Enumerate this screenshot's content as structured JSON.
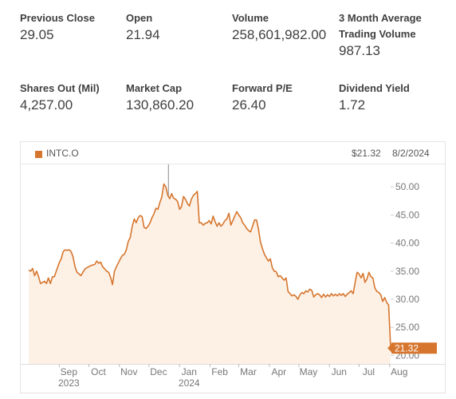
{
  "stats": [
    {
      "label": "Previous Close",
      "value": "29.05"
    },
    {
      "label": "Open",
      "value": "21.94"
    },
    {
      "label": "Volume",
      "value": "258,601,982.00"
    },
    {
      "label": "3 Month Average Trading Volume",
      "value": "987.13"
    },
    {
      "label": "Shares Out (Mil)",
      "value": "4,257.00"
    },
    {
      "label": "Market Cap",
      "value": "130,860.20"
    },
    {
      "label": "Forward P/E",
      "value": "26.40"
    },
    {
      "label": "Dividend Yield",
      "value": "1.72"
    }
  ],
  "colors": {
    "accent": "#d6762e",
    "fill": "#fdf1e6"
  },
  "chart_data": {
    "type": "area",
    "series": [
      {
        "name": "INTC.O"
      }
    ],
    "last_price": "$21.32",
    "last_date": "8/2/2024",
    "last_value_label": "21.32",
    "ylim": [
      18.5,
      54
    ],
    "yticks": [
      "20.00",
      "25.00",
      "30.00",
      "35.00",
      "40.00",
      "45.00",
      "50.00"
    ],
    "ytick_values": [
      20,
      25,
      30,
      35,
      40,
      45,
      50
    ],
    "xticks": [
      {
        "label": "Sep",
        "sub": "2023",
        "date": "2023-09-01"
      },
      {
        "label": "Oct",
        "sub": "",
        "date": "2023-10-01"
      },
      {
        "label": "Nov",
        "sub": "",
        "date": "2023-11-01"
      },
      {
        "label": "Dec",
        "sub": "",
        "date": "2023-12-01"
      },
      {
        "label": "Jan",
        "sub": "2024",
        "date": "2024-01-01"
      },
      {
        "label": "Feb",
        "sub": "",
        "date": "2024-02-01"
      },
      {
        "label": "Mar",
        "sub": "",
        "date": "2024-03-01"
      },
      {
        "label": "Apr",
        "sub": "",
        "date": "2024-04-01"
      },
      {
        "label": "May",
        "sub": "",
        "date": "2024-05-01"
      },
      {
        "label": "Jun",
        "sub": "",
        "date": "2024-06-01"
      },
      {
        "label": "Jul",
        "sub": "",
        "date": "2024-07-01"
      },
      {
        "label": "Aug",
        "sub": "",
        "date": "2024-08-01"
      }
    ],
    "x_range": [
      "2023-08-01",
      "2024-08-02"
    ],
    "points": [
      [
        "2023-08-01",
        35.2
      ],
      [
        "2023-08-03",
        35.0
      ],
      [
        "2023-08-05",
        35.5
      ],
      [
        "2023-08-07",
        34.2
      ],
      [
        "2023-08-09",
        35.0
      ],
      [
        "2023-08-11",
        34.0
      ],
      [
        "2023-08-13",
        32.8
      ],
      [
        "2023-08-15",
        33.0
      ],
      [
        "2023-08-17",
        33.2
      ],
      [
        "2023-08-19",
        32.8
      ],
      [
        "2023-08-21",
        33.8
      ],
      [
        "2023-08-23",
        32.8
      ],
      [
        "2023-08-25",
        34.0
      ],
      [
        "2023-08-27",
        34.0
      ],
      [
        "2023-08-29",
        35.0
      ],
      [
        "2023-08-31",
        36.0
      ],
      [
        "2023-09-01",
        36.5
      ],
      [
        "2023-09-03",
        37.2
      ],
      [
        "2023-09-05",
        38.5
      ],
      [
        "2023-09-07",
        38.8
      ],
      [
        "2023-09-09",
        38.7
      ],
      [
        "2023-09-11",
        38.8
      ],
      [
        "2023-09-13",
        38.5
      ],
      [
        "2023-09-15",
        37.5
      ],
      [
        "2023-09-17",
        35.8
      ],
      [
        "2023-09-19",
        34.8
      ],
      [
        "2023-09-21",
        34.5
      ],
      [
        "2023-09-23",
        34.2
      ],
      [
        "2023-09-25",
        34.8
      ],
      [
        "2023-09-27",
        35.4
      ],
      [
        "2023-09-29",
        35.6
      ],
      [
        "2023-10-01",
        35.8
      ],
      [
        "2023-10-03",
        36.0
      ],
      [
        "2023-10-05",
        36.1
      ],
      [
        "2023-10-07",
        36.2
      ],
      [
        "2023-10-09",
        36.8
      ],
      [
        "2023-10-11",
        36.4
      ],
      [
        "2023-10-13",
        36.6
      ],
      [
        "2023-10-15",
        35.8
      ],
      [
        "2023-10-17",
        35.4
      ],
      [
        "2023-10-19",
        35.0
      ],
      [
        "2023-10-21",
        34.8
      ],
      [
        "2023-10-23",
        33.9
      ],
      [
        "2023-10-25",
        32.6
      ],
      [
        "2023-10-27",
        35.0
      ],
      [
        "2023-10-29",
        35.8
      ],
      [
        "2023-10-31",
        36.5
      ],
      [
        "2023-11-02",
        37.2
      ],
      [
        "2023-11-04",
        37.8
      ],
      [
        "2023-11-06",
        38.0
      ],
      [
        "2023-11-08",
        38.8
      ],
      [
        "2023-11-10",
        40.3
      ],
      [
        "2023-11-12",
        41.0
      ],
      [
        "2023-11-14",
        43.0
      ],
      [
        "2023-11-16",
        44.3
      ],
      [
        "2023-11-18",
        43.6
      ],
      [
        "2023-11-20",
        44.5
      ],
      [
        "2023-11-22",
        44.9
      ],
      [
        "2023-11-24",
        44.7
      ],
      [
        "2023-11-26",
        42.8
      ],
      [
        "2023-11-28",
        42.6
      ],
      [
        "2023-11-30",
        43.0
      ],
      [
        "2023-12-02",
        43.6
      ],
      [
        "2023-12-04",
        44.5
      ],
      [
        "2023-12-06",
        45.2
      ],
      [
        "2023-12-08",
        46.2
      ],
      [
        "2023-12-10",
        46.0
      ],
      [
        "2023-12-12",
        47.2
      ],
      [
        "2023-12-14",
        48.2
      ],
      [
        "2023-12-16",
        50.5
      ],
      [
        "2023-12-18",
        50.0
      ],
      [
        "2023-12-20",
        48.5
      ],
      [
        "2023-12-22",
        47.9
      ],
      [
        "2023-12-24",
        48.8
      ],
      [
        "2023-12-26",
        48.0
      ],
      [
        "2023-12-28",
        47.8
      ],
      [
        "2023-12-30",
        47.4
      ],
      [
        "2024-01-01",
        46.0
      ],
      [
        "2024-01-03",
        46.5
      ],
      [
        "2024-01-05",
        48.3
      ],
      [
        "2024-01-07",
        47.8
      ],
      [
        "2024-01-09",
        47.0
      ],
      [
        "2024-01-11",
        46.6
      ],
      [
        "2024-01-13",
        47.8
      ],
      [
        "2024-01-15",
        48.5
      ],
      [
        "2024-01-17",
        48.8
      ],
      [
        "2024-01-19",
        49.2
      ],
      [
        "2024-01-21",
        43.6
      ],
      [
        "2024-01-23",
        43.6
      ],
      [
        "2024-01-25",
        43.2
      ],
      [
        "2024-01-27",
        43.5
      ],
      [
        "2024-01-29",
        43.6
      ],
      [
        "2024-01-31",
        44.0
      ],
      [
        "2024-02-02",
        43.4
      ],
      [
        "2024-02-04",
        44.8
      ],
      [
        "2024-02-06",
        43.8
      ],
      [
        "2024-02-08",
        43.0
      ],
      [
        "2024-02-10",
        43.6
      ],
      [
        "2024-02-12",
        43.0
      ],
      [
        "2024-02-14",
        43.4
      ],
      [
        "2024-02-16",
        44.0
      ],
      [
        "2024-02-18",
        44.3
      ],
      [
        "2024-02-20",
        45.3
      ],
      [
        "2024-02-22",
        43.2
      ],
      [
        "2024-02-24",
        44.0
      ],
      [
        "2024-02-26",
        44.8
      ],
      [
        "2024-02-28",
        45.6
      ],
      [
        "2024-03-01",
        45.0
      ],
      [
        "2024-03-03",
        44.5
      ],
      [
        "2024-03-05",
        43.6
      ],
      [
        "2024-03-07",
        43.2
      ],
      [
        "2024-03-09",
        42.6
      ],
      [
        "2024-03-11",
        42.2
      ],
      [
        "2024-03-13",
        42.0
      ],
      [
        "2024-03-15",
        43.0
      ],
      [
        "2024-03-17",
        44.1
      ],
      [
        "2024-03-19",
        44.1
      ],
      [
        "2024-03-21",
        42.5
      ],
      [
        "2024-03-23",
        40.2
      ],
      [
        "2024-03-25",
        39.0
      ],
      [
        "2024-03-27",
        38.0
      ],
      [
        "2024-03-29",
        37.4
      ],
      [
        "2024-03-31",
        36.8
      ],
      [
        "2024-04-02",
        37.2
      ],
      [
        "2024-04-04",
        35.6
      ],
      [
        "2024-04-06",
        35.0
      ],
      [
        "2024-04-08",
        34.9
      ],
      [
        "2024-04-10",
        34.0
      ],
      [
        "2024-04-12",
        34.2
      ],
      [
        "2024-04-14",
        33.8
      ],
      [
        "2024-04-16",
        33.4
      ],
      [
        "2024-04-18",
        33.8
      ],
      [
        "2024-04-20",
        31.4
      ],
      [
        "2024-04-22",
        31.0
      ],
      [
        "2024-04-24",
        30.6
      ],
      [
        "2024-04-26",
        30.8
      ],
      [
        "2024-04-28",
        30.5
      ],
      [
        "2024-04-30",
        30.0
      ],
      [
        "2024-05-02",
        30.8
      ],
      [
        "2024-05-04",
        31.2
      ],
      [
        "2024-05-06",
        31.0
      ],
      [
        "2024-05-08",
        31.5
      ],
      [
        "2024-05-10",
        31.3
      ],
      [
        "2024-05-12",
        31.8
      ],
      [
        "2024-05-14",
        31.6
      ],
      [
        "2024-05-16",
        30.4
      ],
      [
        "2024-05-18",
        30.8
      ],
      [
        "2024-05-20",
        31.0
      ],
      [
        "2024-05-22",
        30.8
      ],
      [
        "2024-05-24",
        30.3
      ],
      [
        "2024-05-26",
        30.9
      ],
      [
        "2024-05-28",
        30.4
      ],
      [
        "2024-05-30",
        30.8
      ],
      [
        "2024-06-01",
        30.5
      ],
      [
        "2024-06-03",
        31.0
      ],
      [
        "2024-06-05",
        30.6
      ],
      [
        "2024-06-07",
        30.9
      ],
      [
        "2024-06-09",
        30.6
      ],
      [
        "2024-06-11",
        31.0
      ],
      [
        "2024-06-13",
        30.7
      ],
      [
        "2024-06-15",
        31.0
      ],
      [
        "2024-06-17",
        30.5
      ],
      [
        "2024-06-19",
        30.9
      ],
      [
        "2024-06-21",
        31.2
      ],
      [
        "2024-06-23",
        31.5
      ],
      [
        "2024-06-25",
        31.0
      ],
      [
        "2024-06-27",
        33.0
      ],
      [
        "2024-06-29",
        34.8
      ],
      [
        "2024-07-01",
        34.5
      ],
      [
        "2024-07-03",
        33.8
      ],
      [
        "2024-07-05",
        34.6
      ],
      [
        "2024-07-07",
        33.0
      ],
      [
        "2024-07-09",
        33.6
      ],
      [
        "2024-07-11",
        34.8
      ],
      [
        "2024-07-13",
        34.0
      ],
      [
        "2024-07-15",
        33.8
      ],
      [
        "2024-07-17",
        32.0
      ],
      [
        "2024-07-19",
        31.4
      ],
      [
        "2024-07-21",
        31.2
      ],
      [
        "2024-07-23",
        30.8
      ],
      [
        "2024-07-25",
        29.6
      ],
      [
        "2024-07-27",
        30.3
      ],
      [
        "2024-07-29",
        29.4
      ],
      [
        "2024-07-31",
        29.0
      ],
      [
        "2024-08-02",
        21.3
      ]
    ]
  }
}
